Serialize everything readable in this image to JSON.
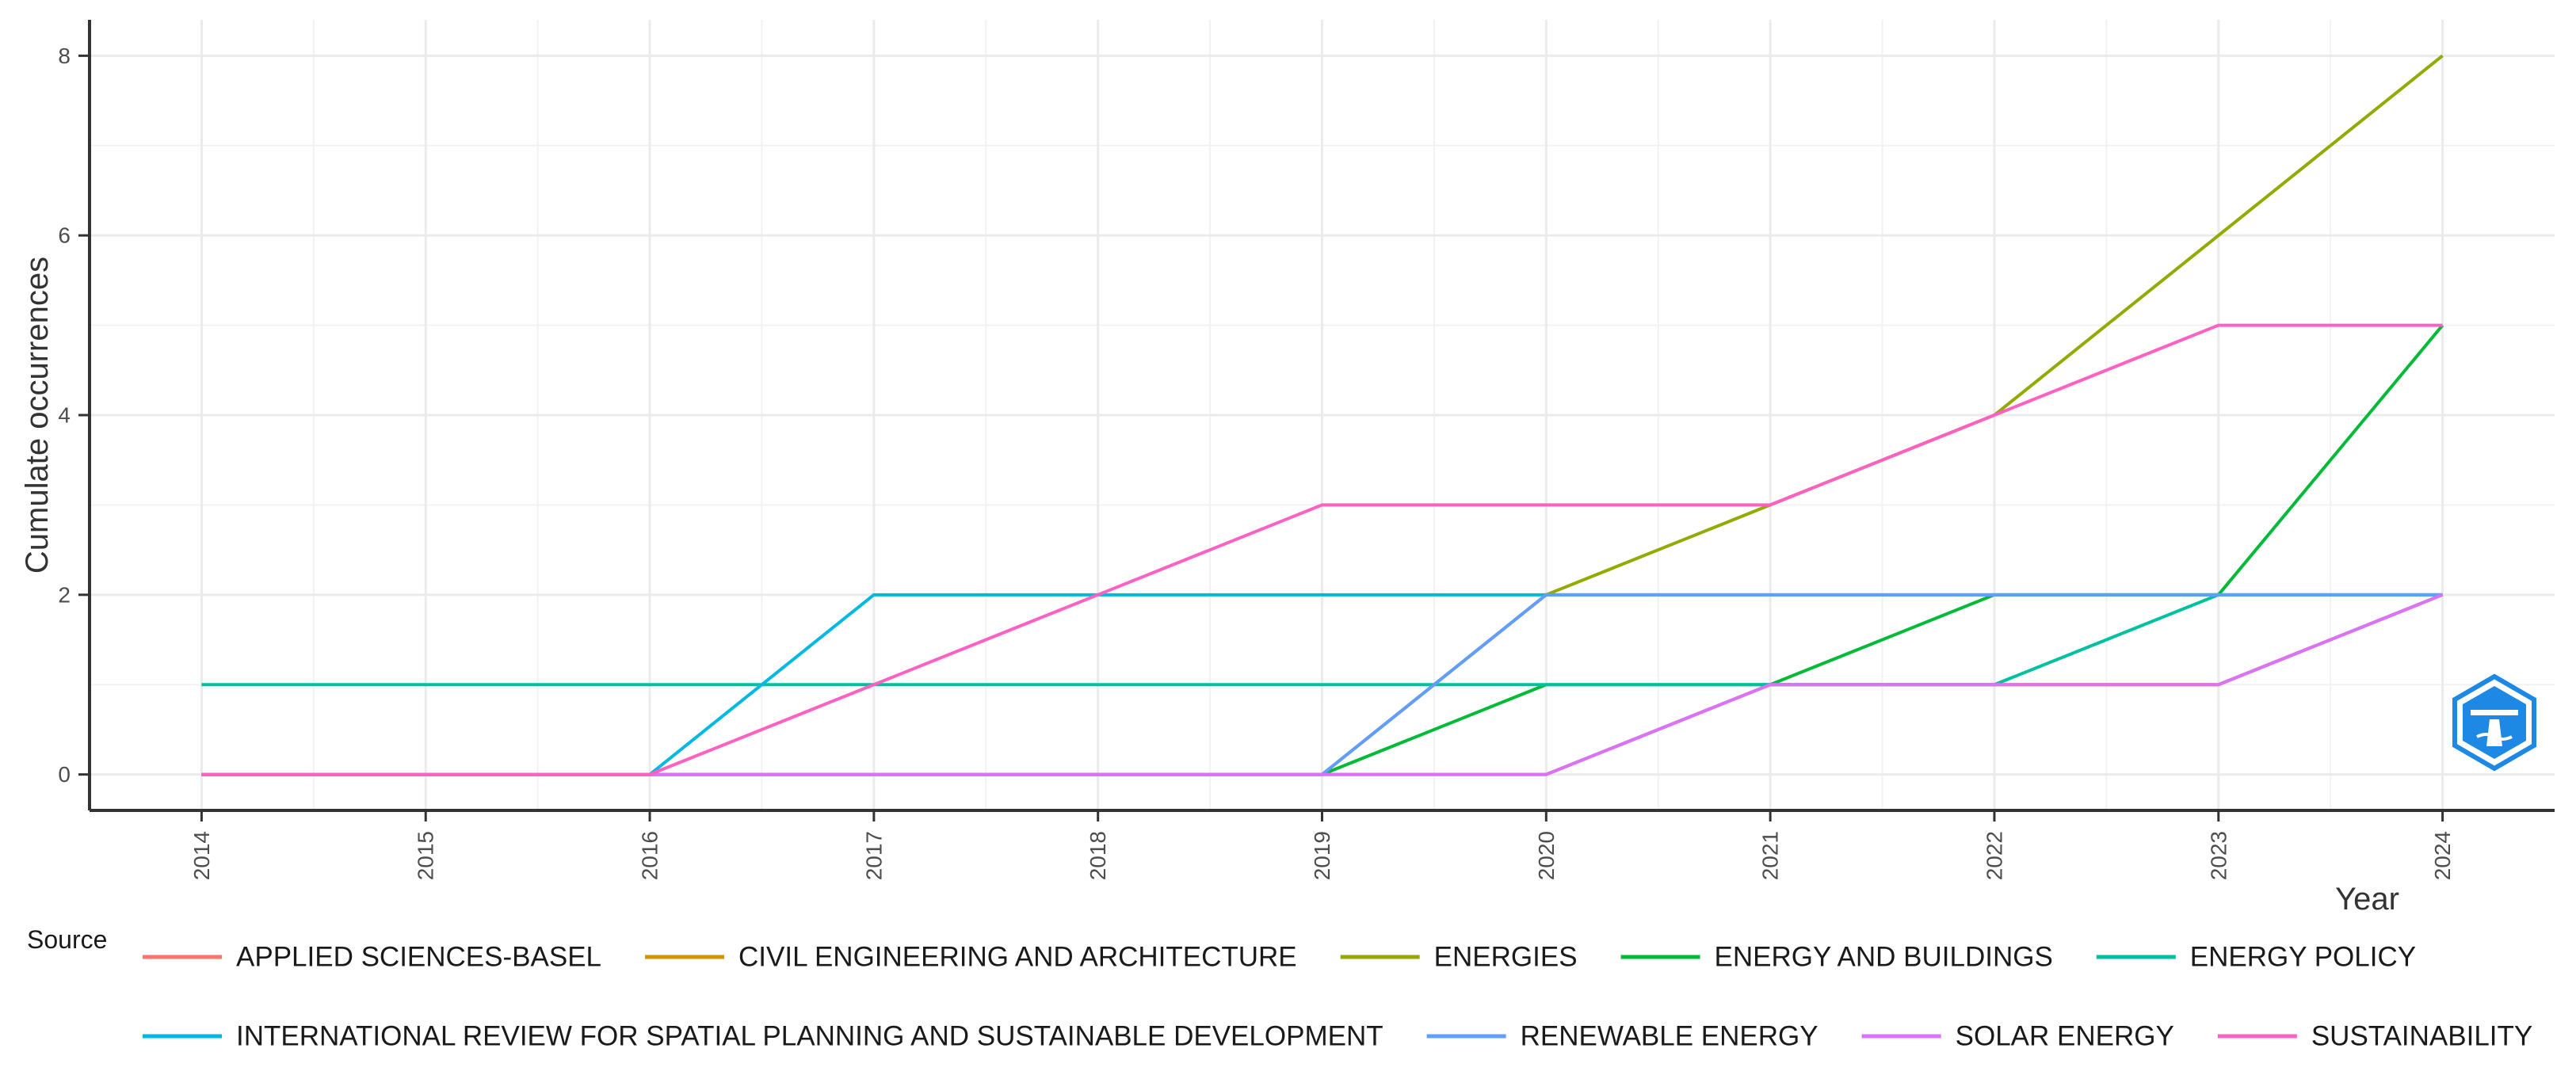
{
  "chart_data": {
    "type": "line",
    "title": "",
    "xlabel": "Year",
    "ylabel": "Cumulate occurrences",
    "x": [
      2014,
      2015,
      2016,
      2017,
      2018,
      2019,
      2020,
      2021,
      2022,
      2023,
      2024
    ],
    "xtick_labels": [
      "2014",
      "2015",
      "2016",
      "2017",
      "2018",
      "2019",
      "2020",
      "2021",
      "2022",
      "2023",
      "2024"
    ],
    "ytick_labels": [
      "0",
      "2",
      "4",
      "6",
      "8"
    ],
    "yticks": [
      0,
      2,
      4,
      6,
      8
    ],
    "xlim": [
      2013.5,
      2024.5
    ],
    "ylim": [
      -0.4,
      8.4
    ],
    "grid": true,
    "legend_title": "Source",
    "legend_position": "bottom",
    "series": [
      {
        "name": "APPLIED SCIENCES-BASEL",
        "color": "#F8766D",
        "values": [
          0,
          0,
          0,
          0,
          0,
          0,
          0,
          1,
          1,
          1,
          2
        ]
      },
      {
        "name": "CIVIL ENGINEERING AND ARCHITECTURE",
        "color": "#D39200",
        "values": [
          0,
          0,
          0,
          0,
          0,
          0,
          0,
          1,
          1,
          1,
          2
        ]
      },
      {
        "name": "ENERGIES",
        "color": "#93AA00",
        "values": [
          0,
          0,
          0,
          0,
          0,
          0,
          2,
          3,
          4,
          6,
          8
        ]
      },
      {
        "name": "ENERGY AND BUILDINGS",
        "color": "#00BA38",
        "values": [
          0,
          0,
          0,
          0,
          0,
          0,
          1,
          1,
          2,
          2,
          5
        ]
      },
      {
        "name": "ENERGY POLICY",
        "color": "#00C19F",
        "values": [
          1,
          1,
          1,
          1,
          1,
          1,
          1,
          1,
          1,
          2,
          2
        ]
      },
      {
        "name": "INTERNATIONAL REVIEW FOR SPATIAL PLANNING AND SUSTAINABLE DEVELOPMENT",
        "color": "#00B9E3",
        "values": [
          0,
          0,
          0,
          2,
          2,
          2,
          2,
          2,
          2,
          2,
          2
        ]
      },
      {
        "name": "RENEWABLE ENERGY",
        "color": "#619CFF",
        "values": [
          0,
          0,
          0,
          0,
          0,
          0,
          2,
          2,
          2,
          2,
          2
        ]
      },
      {
        "name": "SOLAR ENERGY",
        "color": "#DB72FB",
        "values": [
          0,
          0,
          0,
          0,
          0,
          0,
          0,
          1,
          1,
          1,
          2
        ]
      },
      {
        "name": "SUSTAINABILITY",
        "color": "#FF61C3",
        "values": [
          0,
          0,
          0,
          1,
          2,
          3,
          3,
          3,
          4,
          5,
          5
        ]
      }
    ]
  },
  "watermark_logo": {
    "name": "bibliometrix-logo",
    "color": "#1E88E5"
  }
}
